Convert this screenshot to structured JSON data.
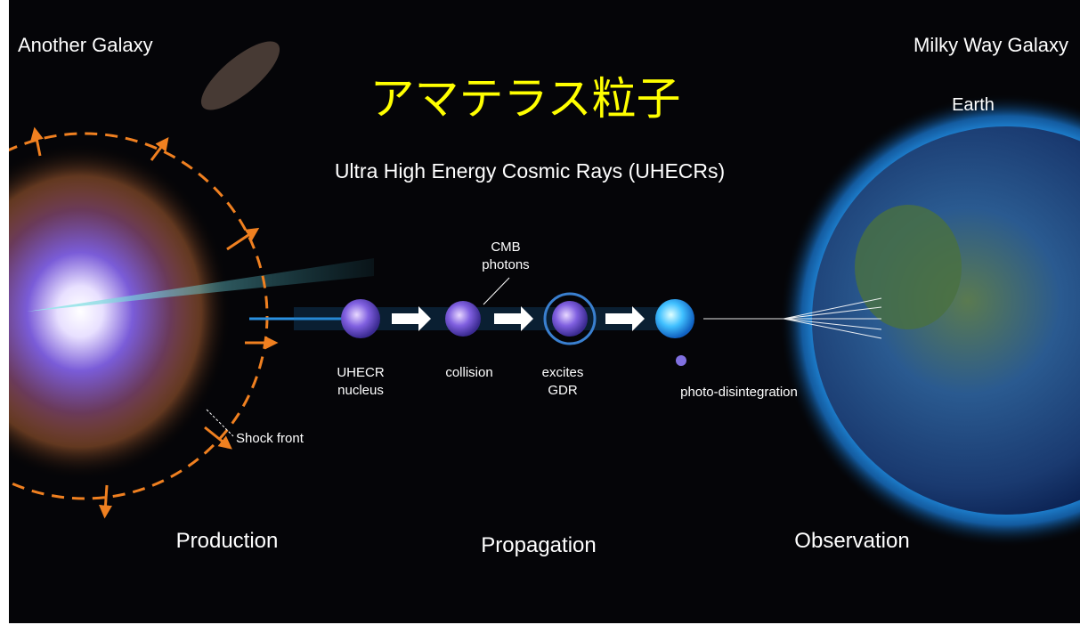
{
  "header": {
    "left_label": "Another Galaxy",
    "right_label": "Milky Way Galaxy",
    "title": "アマテラス粒子",
    "subtitle": "Ultra High Energy Cosmic Rays (UHECRs)"
  },
  "earth_label": "Earth",
  "annotations": {
    "cmb": [
      "CMB",
      "photons"
    ],
    "shock_front": "Shock front"
  },
  "steps": [
    {
      "label": [
        "UHECR",
        "nucleus"
      ]
    },
    {
      "label": [
        "collision"
      ]
    },
    {
      "label": [
        "excites",
        "GDR"
      ]
    },
    {
      "label": [
        "photo-disintegration"
      ]
    }
  ],
  "stages": [
    "Production",
    "Propagation",
    "Observation"
  ]
}
